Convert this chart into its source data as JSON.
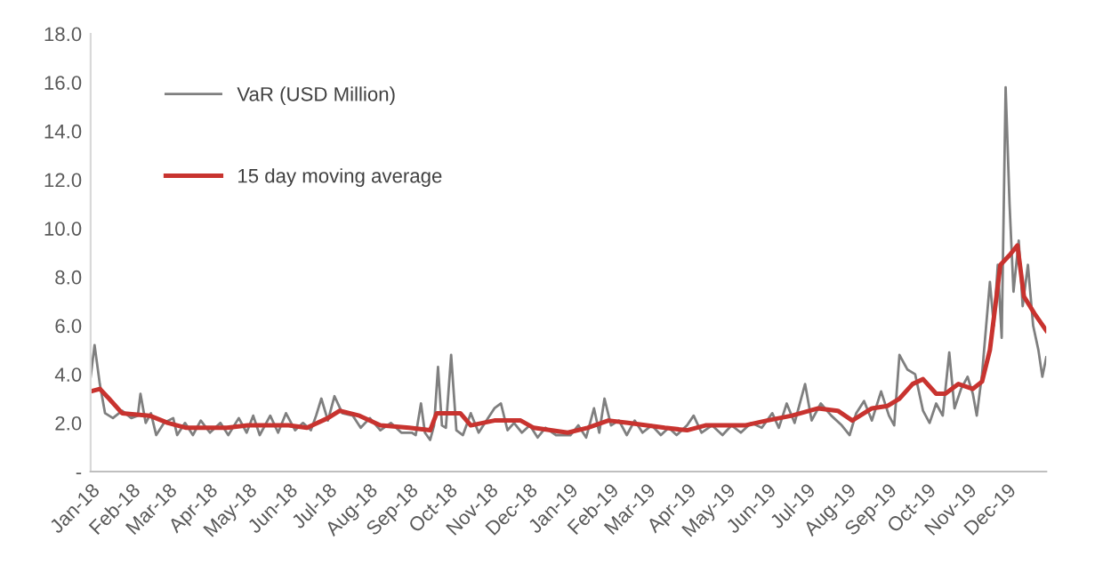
{
  "chart_data": {
    "type": "line",
    "legend": "top left",
    "grid": false,
    "marker": "none",
    "line_style": "solid",
    "xlim": [
      "2018-01-01",
      "2019-12-31"
    ],
    "xticks": [
      {
        "value": "2018-01-01",
        "label": "Jan-18"
      },
      {
        "value": "2018-02-01",
        "label": "Feb-18"
      },
      {
        "value": "2018-03-01",
        "label": "Mar-18"
      },
      {
        "value": "2018-04-01",
        "label": "Apr-18"
      },
      {
        "value": "2018-05-01",
        "label": "May-18"
      },
      {
        "value": "2018-06-01",
        "label": "Jun-18"
      },
      {
        "value": "2018-07-01",
        "label": "Jul-18"
      },
      {
        "value": "2018-08-01",
        "label": "Aug-18"
      },
      {
        "value": "2018-09-01",
        "label": "Sep-18"
      },
      {
        "value": "2018-10-01",
        "label": "Oct-18"
      },
      {
        "value": "2018-11-01",
        "label": "Nov-18"
      },
      {
        "value": "2018-12-01",
        "label": "Dec-18"
      },
      {
        "value": "2019-01-01",
        "label": "Jan-19"
      },
      {
        "value": "2019-02-01",
        "label": "Feb-19"
      },
      {
        "value": "2019-03-01",
        "label": "Mar-19"
      },
      {
        "value": "2019-04-01",
        "label": "Apr-19"
      },
      {
        "value": "2019-05-01",
        "label": "May-19"
      },
      {
        "value": "2019-06-01",
        "label": "Jun-19"
      },
      {
        "value": "2019-07-01",
        "label": "Jul-19"
      },
      {
        "value": "2019-08-01",
        "label": "Aug-19"
      },
      {
        "value": "2019-09-01",
        "label": "Sep-19"
      },
      {
        "value": "2019-10-01",
        "label": "Oct-19"
      },
      {
        "value": "2019-11-01",
        "label": "Nov-19"
      },
      {
        "value": "2019-12-01",
        "label": "Dec-19"
      }
    ],
    "ylim": [
      0,
      18
    ],
    "yticks": [
      {
        "value": 0,
        "label": "-"
      },
      {
        "value": 2,
        "label": "2.0"
      },
      {
        "value": 4,
        "label": "4.0"
      },
      {
        "value": 6,
        "label": "6.0"
      },
      {
        "value": 8,
        "label": "8.0"
      },
      {
        "value": 10,
        "label": "10.0"
      },
      {
        "value": 12,
        "label": "12.0"
      },
      {
        "value": 14,
        "label": "14.0"
      },
      {
        "value": 16,
        "label": "16.0"
      },
      {
        "value": 18,
        "label": "18.0"
      }
    ],
    "series": [
      {
        "name": "VaR (USD Million)",
        "color": "#7f7f7f",
        "x": [
          "2018-01-01",
          "2018-01-04",
          "2018-01-08",
          "2018-01-12",
          "2018-01-18",
          "2018-01-25",
          "2018-02-01",
          "2018-02-06",
          "2018-02-08",
          "2018-02-12",
          "2018-02-16",
          "2018-02-20",
          "2018-02-26",
          "2018-03-05",
          "2018-03-08",
          "2018-03-14",
          "2018-03-20",
          "2018-03-26",
          "2018-04-02",
          "2018-04-10",
          "2018-04-16",
          "2018-04-24",
          "2018-04-30",
          "2018-05-05",
          "2018-05-10",
          "2018-05-18",
          "2018-05-24",
          "2018-05-30",
          "2018-06-06",
          "2018-06-12",
          "2018-06-18",
          "2018-06-22",
          "2018-06-26",
          "2018-07-01",
          "2018-07-06",
          "2018-07-12",
          "2018-07-20",
          "2018-07-26",
          "2018-08-02",
          "2018-08-10",
          "2018-08-18",
          "2018-08-26",
          "2018-09-03",
          "2018-09-06",
          "2018-09-10",
          "2018-09-13",
          "2018-09-17",
          "2018-09-20",
          "2018-09-23",
          "2018-09-26",
          "2018-09-29",
          "2018-10-03",
          "2018-10-07",
          "2018-10-12",
          "2018-10-18",
          "2018-10-24",
          "2018-10-30",
          "2018-11-05",
          "2018-11-10",
          "2018-11-15",
          "2018-11-20",
          "2018-11-26",
          "2018-12-02",
          "2018-12-08",
          "2018-12-14",
          "2018-12-22",
          "2019-01-02",
          "2019-01-08",
          "2019-01-14",
          "2019-01-20",
          "2019-01-24",
          "2019-01-28",
          "2019-02-02",
          "2019-02-08",
          "2019-02-14",
          "2019-02-20",
          "2019-02-26",
          "2019-03-05",
          "2019-03-12",
          "2019-03-18",
          "2019-03-24",
          "2019-04-01",
          "2019-04-06",
          "2019-04-12",
          "2019-04-20",
          "2019-04-28",
          "2019-05-05",
          "2019-05-12",
          "2019-05-20",
          "2019-05-28",
          "2019-06-05",
          "2019-06-10",
          "2019-06-16",
          "2019-06-22",
          "2019-06-30",
          "2019-07-05",
          "2019-07-12",
          "2019-07-20",
          "2019-07-28",
          "2019-08-03",
          "2019-08-08",
          "2019-08-14",
          "2019-08-20",
          "2019-08-27",
          "2019-09-02",
          "2019-09-06",
          "2019-09-10",
          "2019-09-16",
          "2019-09-22",
          "2019-09-28",
          "2019-10-03",
          "2019-10-08",
          "2019-10-13",
          "2019-10-18",
          "2019-10-22",
          "2019-10-27",
          "2019-11-01",
          "2019-11-05",
          "2019-11-08",
          "2019-11-12",
          "2019-11-18",
          "2019-11-21",
          "2019-11-24",
          "2019-11-27",
          "2019-11-30",
          "2019-12-03",
          "2019-12-06",
          "2019-12-10",
          "2019-12-13",
          "2019-12-17",
          "2019-12-21",
          "2019-12-25",
          "2019-12-28",
          "2019-12-31"
        ],
        "values": [
          3.9,
          5.2,
          3.6,
          2.4,
          2.2,
          2.5,
          2.2,
          2.3,
          3.2,
          2.0,
          2.4,
          1.5,
          2.0,
          2.2,
          1.5,
          2.0,
          1.5,
          2.1,
          1.6,
          2.0,
          1.5,
          2.2,
          1.6,
          2.3,
          1.5,
          2.3,
          1.6,
          2.4,
          1.7,
          2.0,
          1.7,
          2.3,
          3.0,
          2.1,
          3.1,
          2.4,
          2.3,
          1.8,
          2.2,
          1.7,
          2.0,
          1.6,
          1.6,
          1.5,
          2.8,
          1.6,
          1.3,
          1.9,
          4.3,
          1.9,
          1.8,
          4.8,
          1.7,
          1.5,
          2.4,
          1.6,
          2.1,
          2.6,
          2.8,
          1.7,
          2.0,
          1.6,
          1.9,
          1.4,
          1.8,
          1.5,
          1.5,
          1.9,
          1.4,
          2.6,
          1.6,
          3.0,
          1.9,
          2.1,
          1.5,
          2.1,
          1.6,
          1.9,
          1.5,
          1.8,
          1.5,
          1.9,
          2.3,
          1.6,
          1.9,
          1.5,
          1.9,
          1.6,
          2.0,
          1.8,
          2.4,
          1.8,
          2.8,
          2.0,
          3.6,
          2.1,
          2.8,
          2.3,
          1.9,
          1.5,
          2.4,
          2.9,
          2.1,
          3.3,
          2.3,
          1.9,
          4.8,
          4.2,
          4.0,
          2.5,
          2.0,
          2.8,
          2.3,
          4.9,
          2.6,
          3.4,
          3.9,
          3.2,
          2.3,
          4.0,
          7.8,
          6.0,
          8.5,
          5.5,
          15.8,
          11.0,
          7.4,
          9.5,
          6.8,
          8.5,
          6.0,
          5.0,
          3.9,
          4.7
        ]
      },
      {
        "name": "15 day moving average",
        "color": "#c8332f",
        "x": [
          "2018-01-01",
          "2018-01-08",
          "2018-01-15",
          "2018-01-25",
          "2018-02-15",
          "2018-03-01",
          "2018-03-15",
          "2018-04-15",
          "2018-05-01",
          "2018-06-01",
          "2018-06-15",
          "2018-07-01",
          "2018-07-10",
          "2018-07-25",
          "2018-08-10",
          "2018-09-01",
          "2018-09-17",
          "2018-09-22",
          "2018-10-10",
          "2018-10-18",
          "2018-11-05",
          "2018-11-25",
          "2018-12-05",
          "2018-12-31",
          "2019-01-15",
          "2019-01-31",
          "2019-02-15",
          "2019-03-15",
          "2019-04-01",
          "2019-04-15",
          "2019-05-15",
          "2019-06-01",
          "2019-06-20",
          "2019-07-10",
          "2019-07-25",
          "2019-08-05",
          "2019-08-20",
          "2019-09-01",
          "2019-09-10",
          "2019-09-20",
          "2019-09-28",
          "2019-10-08",
          "2019-10-15",
          "2019-10-25",
          "2019-11-05",
          "2019-11-12",
          "2019-11-18",
          "2019-11-26",
          "2019-12-03",
          "2019-12-09",
          "2019-12-14",
          "2019-12-22",
          "2019-12-31"
        ],
        "values": [
          3.3,
          3.4,
          3.0,
          2.4,
          2.3,
          2.0,
          1.8,
          1.8,
          1.9,
          1.9,
          1.8,
          2.2,
          2.5,
          2.3,
          1.9,
          1.8,
          1.7,
          2.4,
          2.4,
          1.9,
          2.1,
          2.1,
          1.8,
          1.6,
          1.8,
          2.1,
          2.0,
          1.8,
          1.7,
          1.9,
          1.9,
          2.1,
          2.3,
          2.6,
          2.5,
          2.1,
          2.6,
          2.7,
          3.0,
          3.6,
          3.8,
          3.2,
          3.2,
          3.6,
          3.4,
          3.7,
          5.0,
          8.5,
          8.9,
          9.3,
          7.2,
          6.5,
          5.8
        ]
      }
    ]
  }
}
